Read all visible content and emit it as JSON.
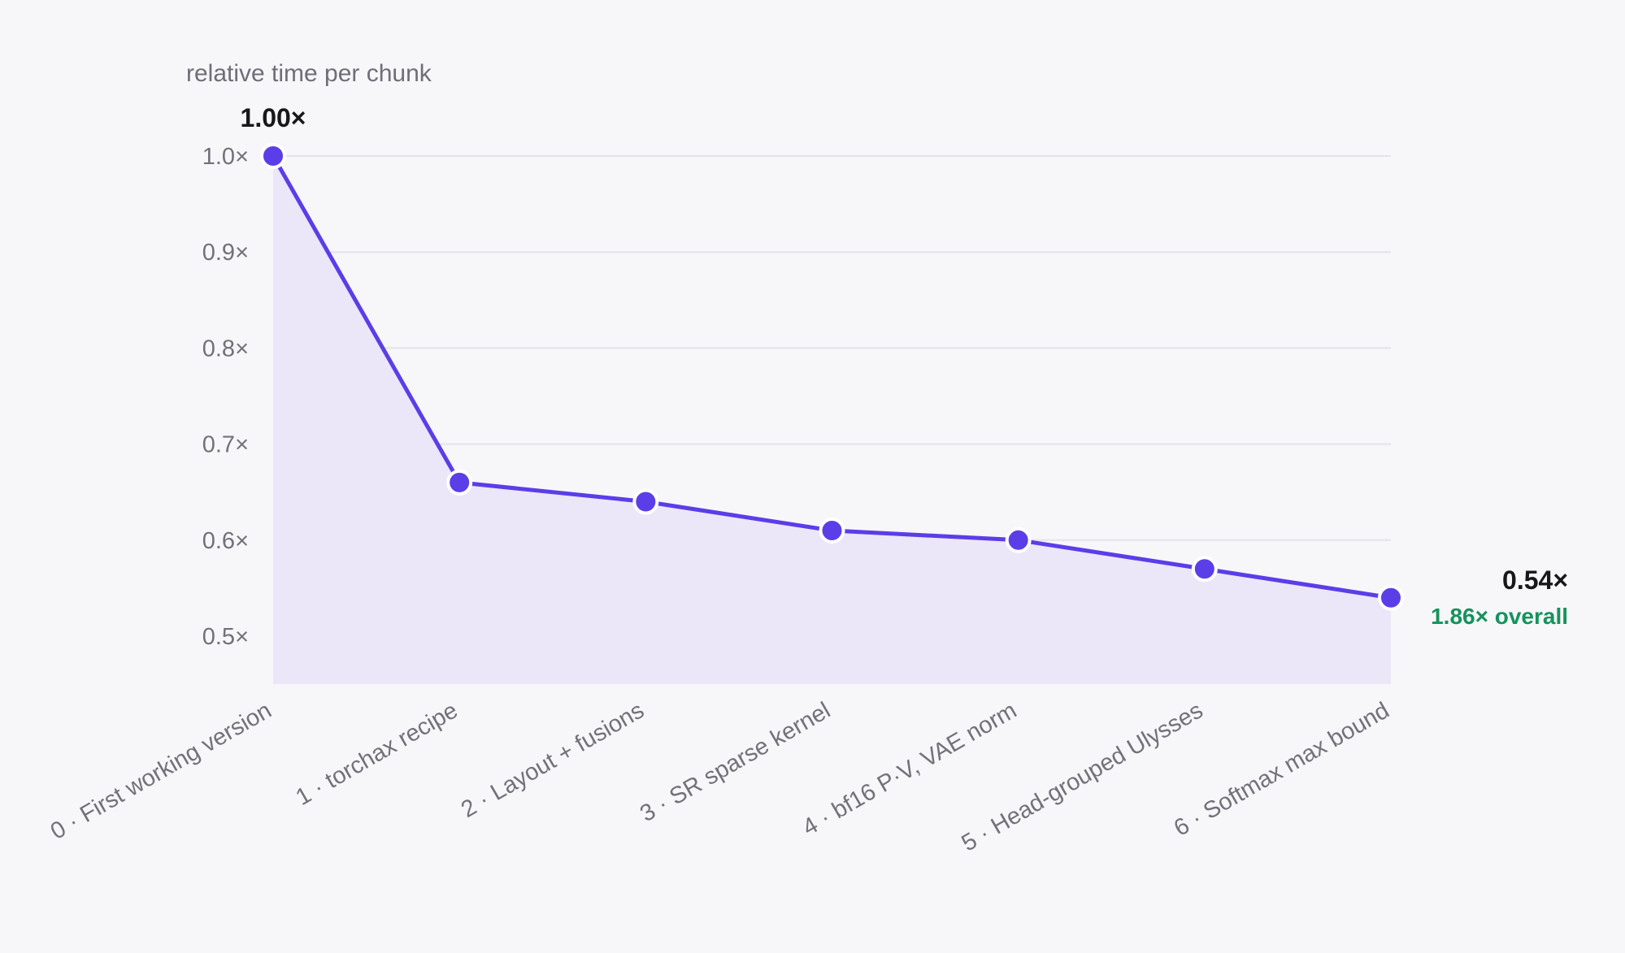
{
  "chart_data": {
    "type": "line",
    "ylabel": "relative time per chunk",
    "xlabel": "",
    "title": "",
    "categories": [
      "0 · First working version",
      "1 · torchax recipe",
      "2 · Layout + fusions",
      "3 · SR sparse kernel",
      "4 · bf16 P·V, VAE norm",
      "5 · Head-grouped Ulysses",
      "6 · Softmax max bound"
    ],
    "values": [
      1.0,
      0.66,
      0.64,
      0.61,
      0.6,
      0.57,
      0.54
    ],
    "ylim": [
      0.45,
      1.0
    ],
    "yticks": [
      1.0,
      0.9,
      0.8,
      0.7,
      0.6,
      0.5
    ],
    "ytick_labels": [
      "1.0×",
      "0.9×",
      "0.8×",
      "0.7×",
      "0.6×",
      "0.5×"
    ],
    "grid": true,
    "area_fill": true,
    "start_label": "1.00×",
    "end_label": "0.54×",
    "overall_label": "1.86× overall",
    "colors": {
      "line": "#5b3ee8",
      "area": "#ebe7f8",
      "point": "#5b3ee8",
      "point_outline": "#ffffff",
      "overall": "#15935c"
    }
  }
}
